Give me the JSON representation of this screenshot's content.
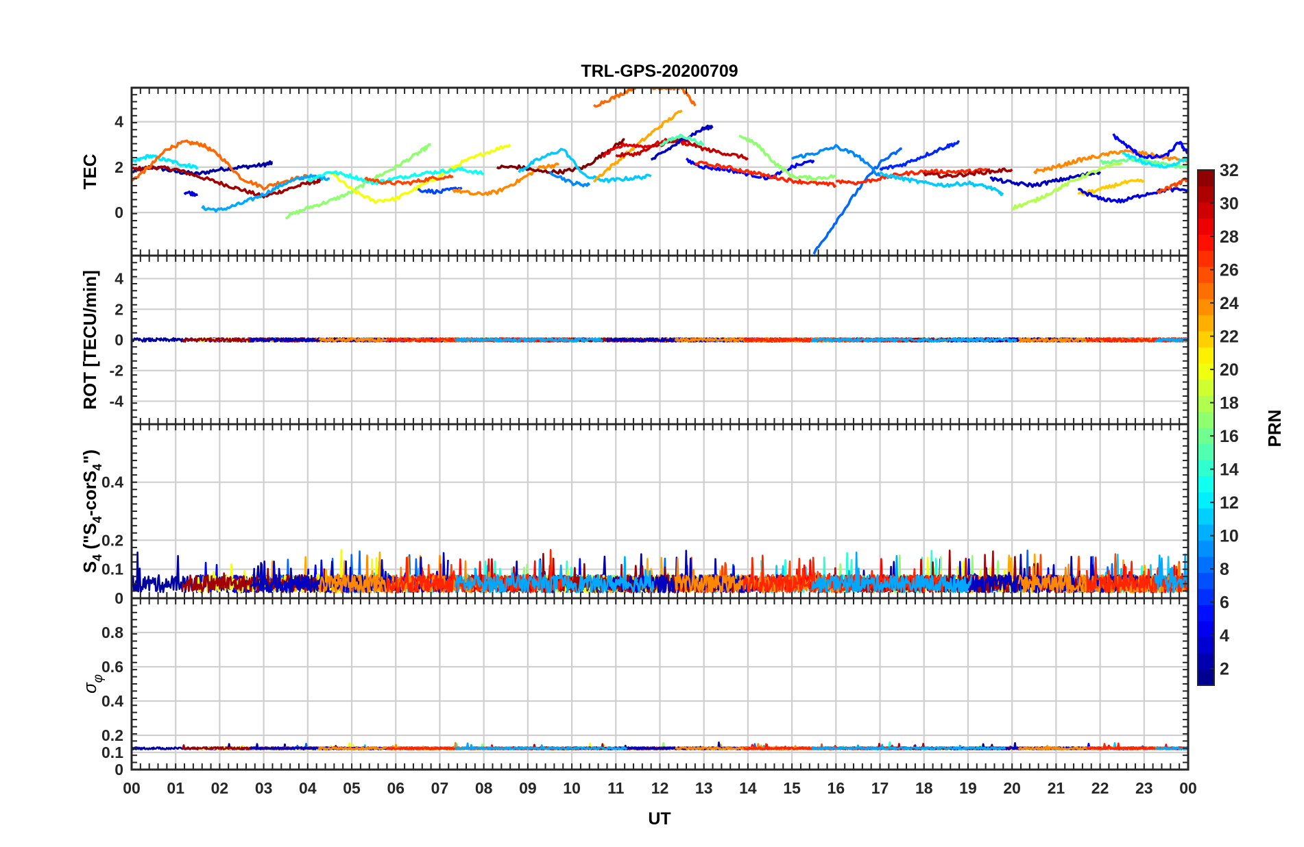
{
  "title": "TRL-GPS-20200709",
  "xlabel": "UT",
  "x_ticks": [
    "00",
    "01",
    "02",
    "03",
    "04",
    "05",
    "06",
    "07",
    "08",
    "09",
    "10",
    "11",
    "12",
    "13",
    "14",
    "15",
    "16",
    "17",
    "18",
    "19",
    "20",
    "21",
    "22",
    "23",
    "00"
  ],
  "colorbar": {
    "label": "PRN",
    "range": [
      1,
      32
    ],
    "ticks": [
      "32",
      "30",
      "28",
      "26",
      "24",
      "22",
      "20",
      "18",
      "16",
      "14",
      "12",
      "10",
      "8",
      "6",
      "4",
      "2"
    ],
    "colormap": "jet"
  },
  "chart_data": [
    {
      "panel": "TEC",
      "type": "line",
      "ylabel": "TEC",
      "ylim": [
        -1.9,
        5.5
      ],
      "yticks": [
        "4",
        "2",
        "0"
      ],
      "grid": true,
      "series": [
        {
          "prn": 2,
          "x": [
            0.0,
            0.5,
            1.0,
            1.5,
            2.0,
            2.5,
            3.0,
            3.2
          ],
          "y": [
            1.8,
            2.0,
            1.8,
            1.7,
            1.9,
            2.0,
            2.1,
            2.2
          ]
        },
        {
          "prn": 31,
          "x": [
            0.0,
            0.5,
            1.0,
            1.5,
            2.0,
            2.5,
            3.0,
            3.5,
            4.0,
            4.3
          ],
          "y": [
            1.9,
            2.0,
            1.9,
            1.6,
            1.3,
            1.0,
            0.7,
            1.0,
            1.3,
            1.4
          ]
        },
        {
          "prn": 12,
          "x": [
            0.0,
            0.4,
            0.8,
            1.2,
            1.5
          ],
          "y": [
            2.2,
            2.5,
            2.3,
            2.1,
            2.0
          ]
        },
        {
          "prn": 25,
          "x": [
            0.0,
            0.4,
            0.8,
            1.2,
            1.6,
            2.0,
            2.5,
            3.0,
            3.5,
            4.0
          ],
          "y": [
            1.4,
            2.0,
            2.8,
            3.1,
            3.0,
            2.5,
            1.5,
            1.1,
            1.4,
            1.6
          ]
        },
        {
          "prn": 10,
          "x": [
            1.6,
            2.0,
            2.5,
            3.0,
            3.5,
            4.0,
            4.5
          ],
          "y": [
            0.2,
            0.1,
            0.4,
            0.8,
            1.3,
            1.6,
            1.5
          ]
        },
        {
          "prn": 4,
          "x": [
            1.2,
            1.5
          ],
          "y": [
            0.9,
            0.8
          ]
        },
        {
          "prn": 17,
          "x": [
            3.5,
            4.0,
            4.5,
            5.0,
            5.5,
            6.0,
            6.5,
            6.8
          ],
          "y": [
            -0.2,
            0.2,
            0.5,
            0.9,
            1.5,
            2.0,
            2.6,
            3.0
          ]
        },
        {
          "prn": 20,
          "x": [
            4.5,
            5.0,
            5.5,
            6.0,
            6.5,
            7.0,
            7.5,
            8.0,
            8.6
          ],
          "y": [
            1.8,
            1.0,
            0.5,
            0.6,
            1.1,
            1.6,
            2.2,
            2.6,
            3.0
          ]
        },
        {
          "prn": 13,
          "x": [
            4.0,
            4.5,
            5.0,
            5.5,
            6.0,
            6.5,
            7.0,
            7.5,
            8.0
          ],
          "y": [
            1.4,
            1.8,
            1.6,
            1.3,
            1.5,
            1.7,
            1.8,
            1.9,
            1.7
          ]
        },
        {
          "prn": 26,
          "x": [
            5.3,
            5.8,
            6.3,
            6.8,
            7.3
          ],
          "y": [
            1.5,
            1.3,
            1.3,
            1.5,
            1.6
          ]
        },
        {
          "prn": 7,
          "x": [
            6.5,
            7.0,
            7.5
          ],
          "y": [
            1.0,
            0.9,
            1.1
          ]
        },
        {
          "prn": 24,
          "x": [
            7.3,
            7.8,
            8.3,
            8.8,
            9.3,
            9.7
          ],
          "y": [
            1.0,
            0.8,
            0.9,
            1.4,
            2.0,
            2.1
          ]
        },
        {
          "prn": 32,
          "x": [
            8.3,
            8.8,
            9.3,
            9.8,
            10.3,
            10.8,
            11.2
          ],
          "y": [
            2.0,
            2.0,
            1.8,
            1.8,
            2.0,
            2.7,
            3.2
          ]
        },
        {
          "prn": 11,
          "x": [
            8.8,
            9.2,
            9.8,
            10.3,
            10.8,
            11.3,
            11.8
          ],
          "y": [
            1.8,
            2.3,
            2.8,
            1.6,
            1.4,
            1.5,
            1.6
          ]
        },
        {
          "prn": 9,
          "x": [
            9.5,
            10.0,
            10.4
          ],
          "y": [
            1.8,
            1.3,
            1.2
          ]
        },
        {
          "prn": 23,
          "x": [
            10.5,
            11.0,
            11.5,
            12.0,
            12.5
          ],
          "y": [
            1.4,
            2.2,
            3.0,
            3.8,
            4.5
          ]
        },
        {
          "prn": 25,
          "x": [
            10.5,
            11.0,
            11.5,
            12.0,
            12.5,
            12.8
          ],
          "y": [
            4.7,
            5.1,
            5.6,
            5.5,
            5.5,
            4.7
          ]
        },
        {
          "prn": 29,
          "x": [
            10.7,
            11.2,
            11.7,
            12.2,
            12.7
          ],
          "y": [
            2.5,
            3.0,
            2.9,
            3.2,
            3.0
          ]
        },
        {
          "prn": 30,
          "x": [
            11.0,
            11.5,
            12.0,
            12.5,
            13.0,
            13.5,
            14.0
          ],
          "y": [
            2.5,
            2.6,
            3.0,
            3.2,
            2.8,
            2.6,
            2.4
          ]
        },
        {
          "prn": 3,
          "x": [
            11.8,
            12.2,
            12.6,
            13.0,
            13.2
          ],
          "y": [
            2.3,
            2.8,
            3.3,
            3.7,
            3.8
          ]
        },
        {
          "prn": 15,
          "x": [
            12.0,
            12.5,
            13.0
          ],
          "y": [
            3.0,
            3.4,
            3.0
          ]
        },
        {
          "prn": 5,
          "x": [
            12.6,
            13.0,
            13.5,
            14.0,
            14.5,
            15.0,
            15.5
          ],
          "y": [
            2.3,
            2.0,
            1.9,
            1.7,
            1.5,
            2.0,
            2.3
          ]
        },
        {
          "prn": 27,
          "x": [
            12.8,
            13.5,
            14.0,
            14.5,
            15.0,
            15.5,
            16.0
          ],
          "y": [
            2.2,
            2.0,
            1.8,
            1.6,
            1.4,
            1.3,
            1.2
          ]
        },
        {
          "prn": 17,
          "x": [
            13.8,
            14.2,
            14.6,
            15.0,
            15.5,
            16.0
          ],
          "y": [
            3.4,
            3.0,
            2.2,
            1.6,
            1.5,
            1.6
          ]
        },
        {
          "prn": 8,
          "x": [
            15.5,
            16.0,
            16.5,
            17.0,
            17.5
          ],
          "y": [
            -1.8,
            -0.4,
            1.0,
            2.2,
            2.8
          ]
        },
        {
          "prn": 9,
          "x": [
            15.0,
            15.5,
            16.0,
            16.5,
            17.0
          ],
          "y": [
            2.4,
            2.6,
            2.9,
            2.5,
            1.6
          ]
        },
        {
          "prn": 27,
          "x": [
            16.0,
            16.5,
            17.0,
            17.5,
            18.0,
            18.5,
            19.0,
            19.5
          ],
          "y": [
            1.4,
            1.3,
            1.5,
            1.7,
            1.8,
            1.8,
            1.8,
            1.9
          ]
        },
        {
          "prn": 6,
          "x": [
            17.0,
            17.5,
            18.0,
            18.5,
            18.8
          ],
          "y": [
            1.9,
            2.1,
            2.5,
            2.9,
            3.1
          ]
        },
        {
          "prn": 11,
          "x": [
            17.0,
            17.5,
            18.0,
            18.5,
            19.0,
            19.5,
            19.8
          ],
          "y": [
            1.7,
            1.5,
            1.3,
            1.2,
            1.3,
            1.1,
            0.8
          ]
        },
        {
          "prn": 31,
          "x": [
            18.0,
            18.5,
            19.0,
            19.5,
            20.0
          ],
          "y": [
            1.7,
            1.6,
            1.7,
            1.8,
            1.9
          ]
        },
        {
          "prn": 3,
          "x": [
            19.5,
            20.0,
            20.5,
            21.0,
            21.5,
            22.0
          ],
          "y": [
            1.5,
            1.3,
            1.2,
            1.4,
            1.6,
            1.8
          ]
        },
        {
          "prn": 18,
          "x": [
            20.0,
            20.5,
            21.0,
            21.5,
            22.0,
            22.5
          ],
          "y": [
            0.2,
            0.5,
            1.0,
            1.5,
            1.9,
            2.2
          ]
        },
        {
          "prn": 24,
          "x": [
            20.5,
            21.0,
            21.5,
            22.0,
            22.5,
            23.0,
            23.5,
            24.0
          ],
          "y": [
            1.8,
            2.0,
            2.3,
            2.5,
            2.7,
            2.6,
            2.4,
            2.3
          ]
        },
        {
          "prn": 22,
          "x": [
            21.5,
            22.0,
            22.5,
            23.0
          ],
          "y": [
            0.8,
            1.0,
            1.3,
            1.4
          ]
        },
        {
          "prn": 4,
          "x": [
            21.5,
            22.0,
            22.5,
            23.0,
            23.5,
            24.0
          ],
          "y": [
            1.0,
            0.6,
            0.5,
            0.8,
            1.0,
            1.0
          ]
        },
        {
          "prn": 5,
          "x": [
            22.3,
            22.7,
            23.0,
            23.5,
            23.8,
            24.0
          ],
          "y": [
            3.4,
            2.8,
            2.4,
            2.5,
            3.1,
            2.6
          ]
        },
        {
          "prn": 16,
          "x": [
            22.0,
            22.5,
            23.0,
            23.5,
            24.0
          ],
          "y": [
            2.2,
            2.3,
            2.3,
            2.1,
            2.0
          ]
        },
        {
          "prn": 12,
          "x": [
            22.5,
            23.0,
            23.5,
            24.0
          ],
          "y": [
            2.6,
            2.2,
            2.0,
            2.4
          ]
        },
        {
          "prn": 26,
          "x": [
            23.3,
            23.7,
            24.0
          ],
          "y": [
            0.9,
            1.2,
            1.5
          ]
        }
      ]
    },
    {
      "panel": "ROT",
      "type": "line",
      "ylabel": "ROT [TECU/min]",
      "ylim": [
        -5.5,
        5.5
      ],
      "yticks": [
        "4",
        "2",
        "0",
        "-2",
        "-4"
      ],
      "grid": true,
      "value_range": [
        -0.2,
        0.2
      ],
      "note_level": 0
    },
    {
      "panel": "S4",
      "type": "line",
      "ylabel": "S₄ (\"S₄-corS₄\")",
      "ylim": [
        0,
        0.6
      ],
      "yticks": [
        "0.4",
        "0.2",
        "0.1",
        "0"
      ],
      "grid": true,
      "value_range": [
        0.0,
        0.21
      ],
      "typical": 0.05
    },
    {
      "panel": "sigma_phi",
      "type": "line",
      "ylabel": "σφ",
      "ylim": [
        0,
        1.0
      ],
      "yticks": [
        "0.8",
        "0.6",
        "0.4",
        "0.2",
        "0.1",
        "0"
      ],
      "grid": true,
      "value_range": [
        0.11,
        0.17
      ],
      "typical": 0.12
    }
  ]
}
